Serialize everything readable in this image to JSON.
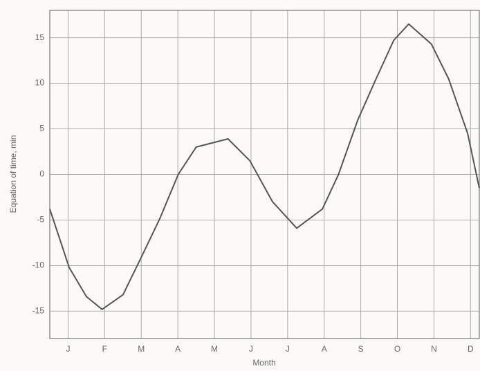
{
  "chart_data": {
    "type": "line",
    "x_label": "Month",
    "y_label": "Equation of time, min",
    "x": [
      0,
      0.53,
      1.0,
      1.43,
      2.0,
      2.51,
      3.0,
      3.51,
      4.0,
      4.87,
      5.47,
      6.09,
      6.75,
      7.45,
      7.89,
      8.42,
      8.92,
      9.4,
      9.81,
      10.43,
      10.9,
      11.42,
      11.74
    ],
    "series": [
      {
        "color": "#555555",
        "values": [
          -3.8,
          -10.2,
          -13.4,
          -14.8,
          -13.2,
          -9,
          -4.9,
          0,
          3,
          3.9,
          1.5,
          -3,
          -5.9,
          -3.8,
          0,
          6,
          10.5,
          14.7,
          16.5,
          14.3,
          10.5,
          4.5,
          -1.5
        ]
      }
    ],
    "xlim": [
      0,
      11.74
    ],
    "xticks": [
      {
        "value": 0.5,
        "label": "J"
      },
      {
        "value": 1.5,
        "label": "F"
      },
      {
        "value": 2.5,
        "label": "M"
      },
      {
        "value": 3.5,
        "label": "A"
      },
      {
        "value": 4.5,
        "label": "M"
      },
      {
        "value": 5.5,
        "label": "J"
      },
      {
        "value": 6.5,
        "label": "J"
      },
      {
        "value": 7.5,
        "label": "A"
      },
      {
        "value": 8.5,
        "label": "S"
      },
      {
        "value": 9.5,
        "label": "O"
      },
      {
        "value": 10.5,
        "label": "N"
      },
      {
        "value": 11.5,
        "label": "D"
      }
    ],
    "ylim": [
      -18,
      18
    ],
    "yticks": [
      15,
      10,
      5,
      0,
      -5,
      -10,
      -15
    ],
    "grid": true
  }
}
